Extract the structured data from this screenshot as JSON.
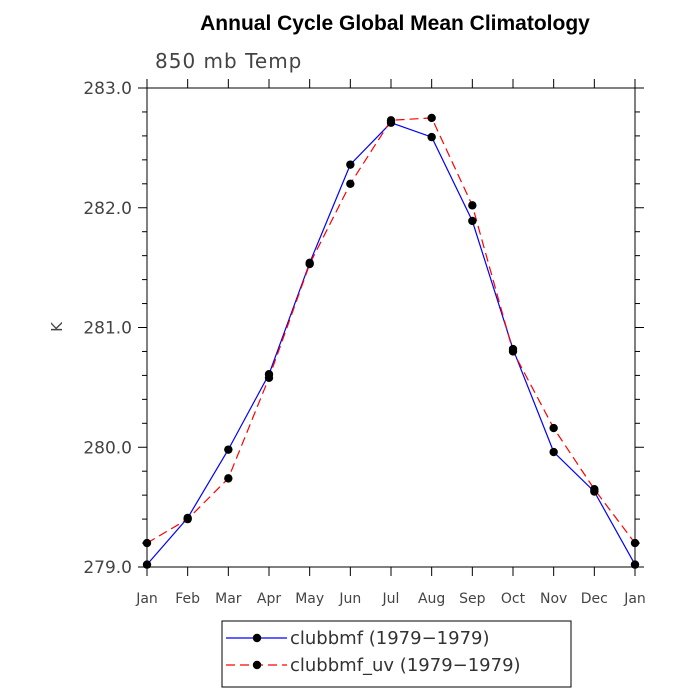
{
  "chart_data": {
    "type": "line",
    "title": "Annual Cycle Global Mean Climatology",
    "subtitle": "850 mb Temp",
    "xlabel": "",
    "ylabel": "K",
    "categories": [
      "Jan",
      "Feb",
      "Mar",
      "Apr",
      "May",
      "Jun",
      "Jul",
      "Aug",
      "Sep",
      "Oct",
      "Nov",
      "Dec",
      "Jan"
    ],
    "ylim": [
      279.0,
      283.0
    ],
    "yticks": [
      "279.0",
      "280.0",
      "281.0",
      "282.0",
      "283.0"
    ],
    "grid": false,
    "legend_position": "bottom-center",
    "series": [
      {
        "name": "clubbmf (1979−1979)",
        "color": "#0000ff",
        "dash": "solid",
        "values": [
          279.02,
          279.41,
          279.98,
          280.61,
          281.54,
          282.36,
          282.71,
          282.59,
          281.89,
          280.82,
          279.96,
          279.63,
          279.02
        ]
      },
      {
        "name": "clubbmf_uv (1979−1979)",
        "color": "#ff0000",
        "dash": "dashed",
        "values": [
          279.2,
          279.4,
          279.74,
          280.58,
          281.53,
          282.2,
          282.73,
          282.75,
          282.02,
          280.8,
          280.16,
          279.65,
          279.2
        ]
      }
    ]
  }
}
